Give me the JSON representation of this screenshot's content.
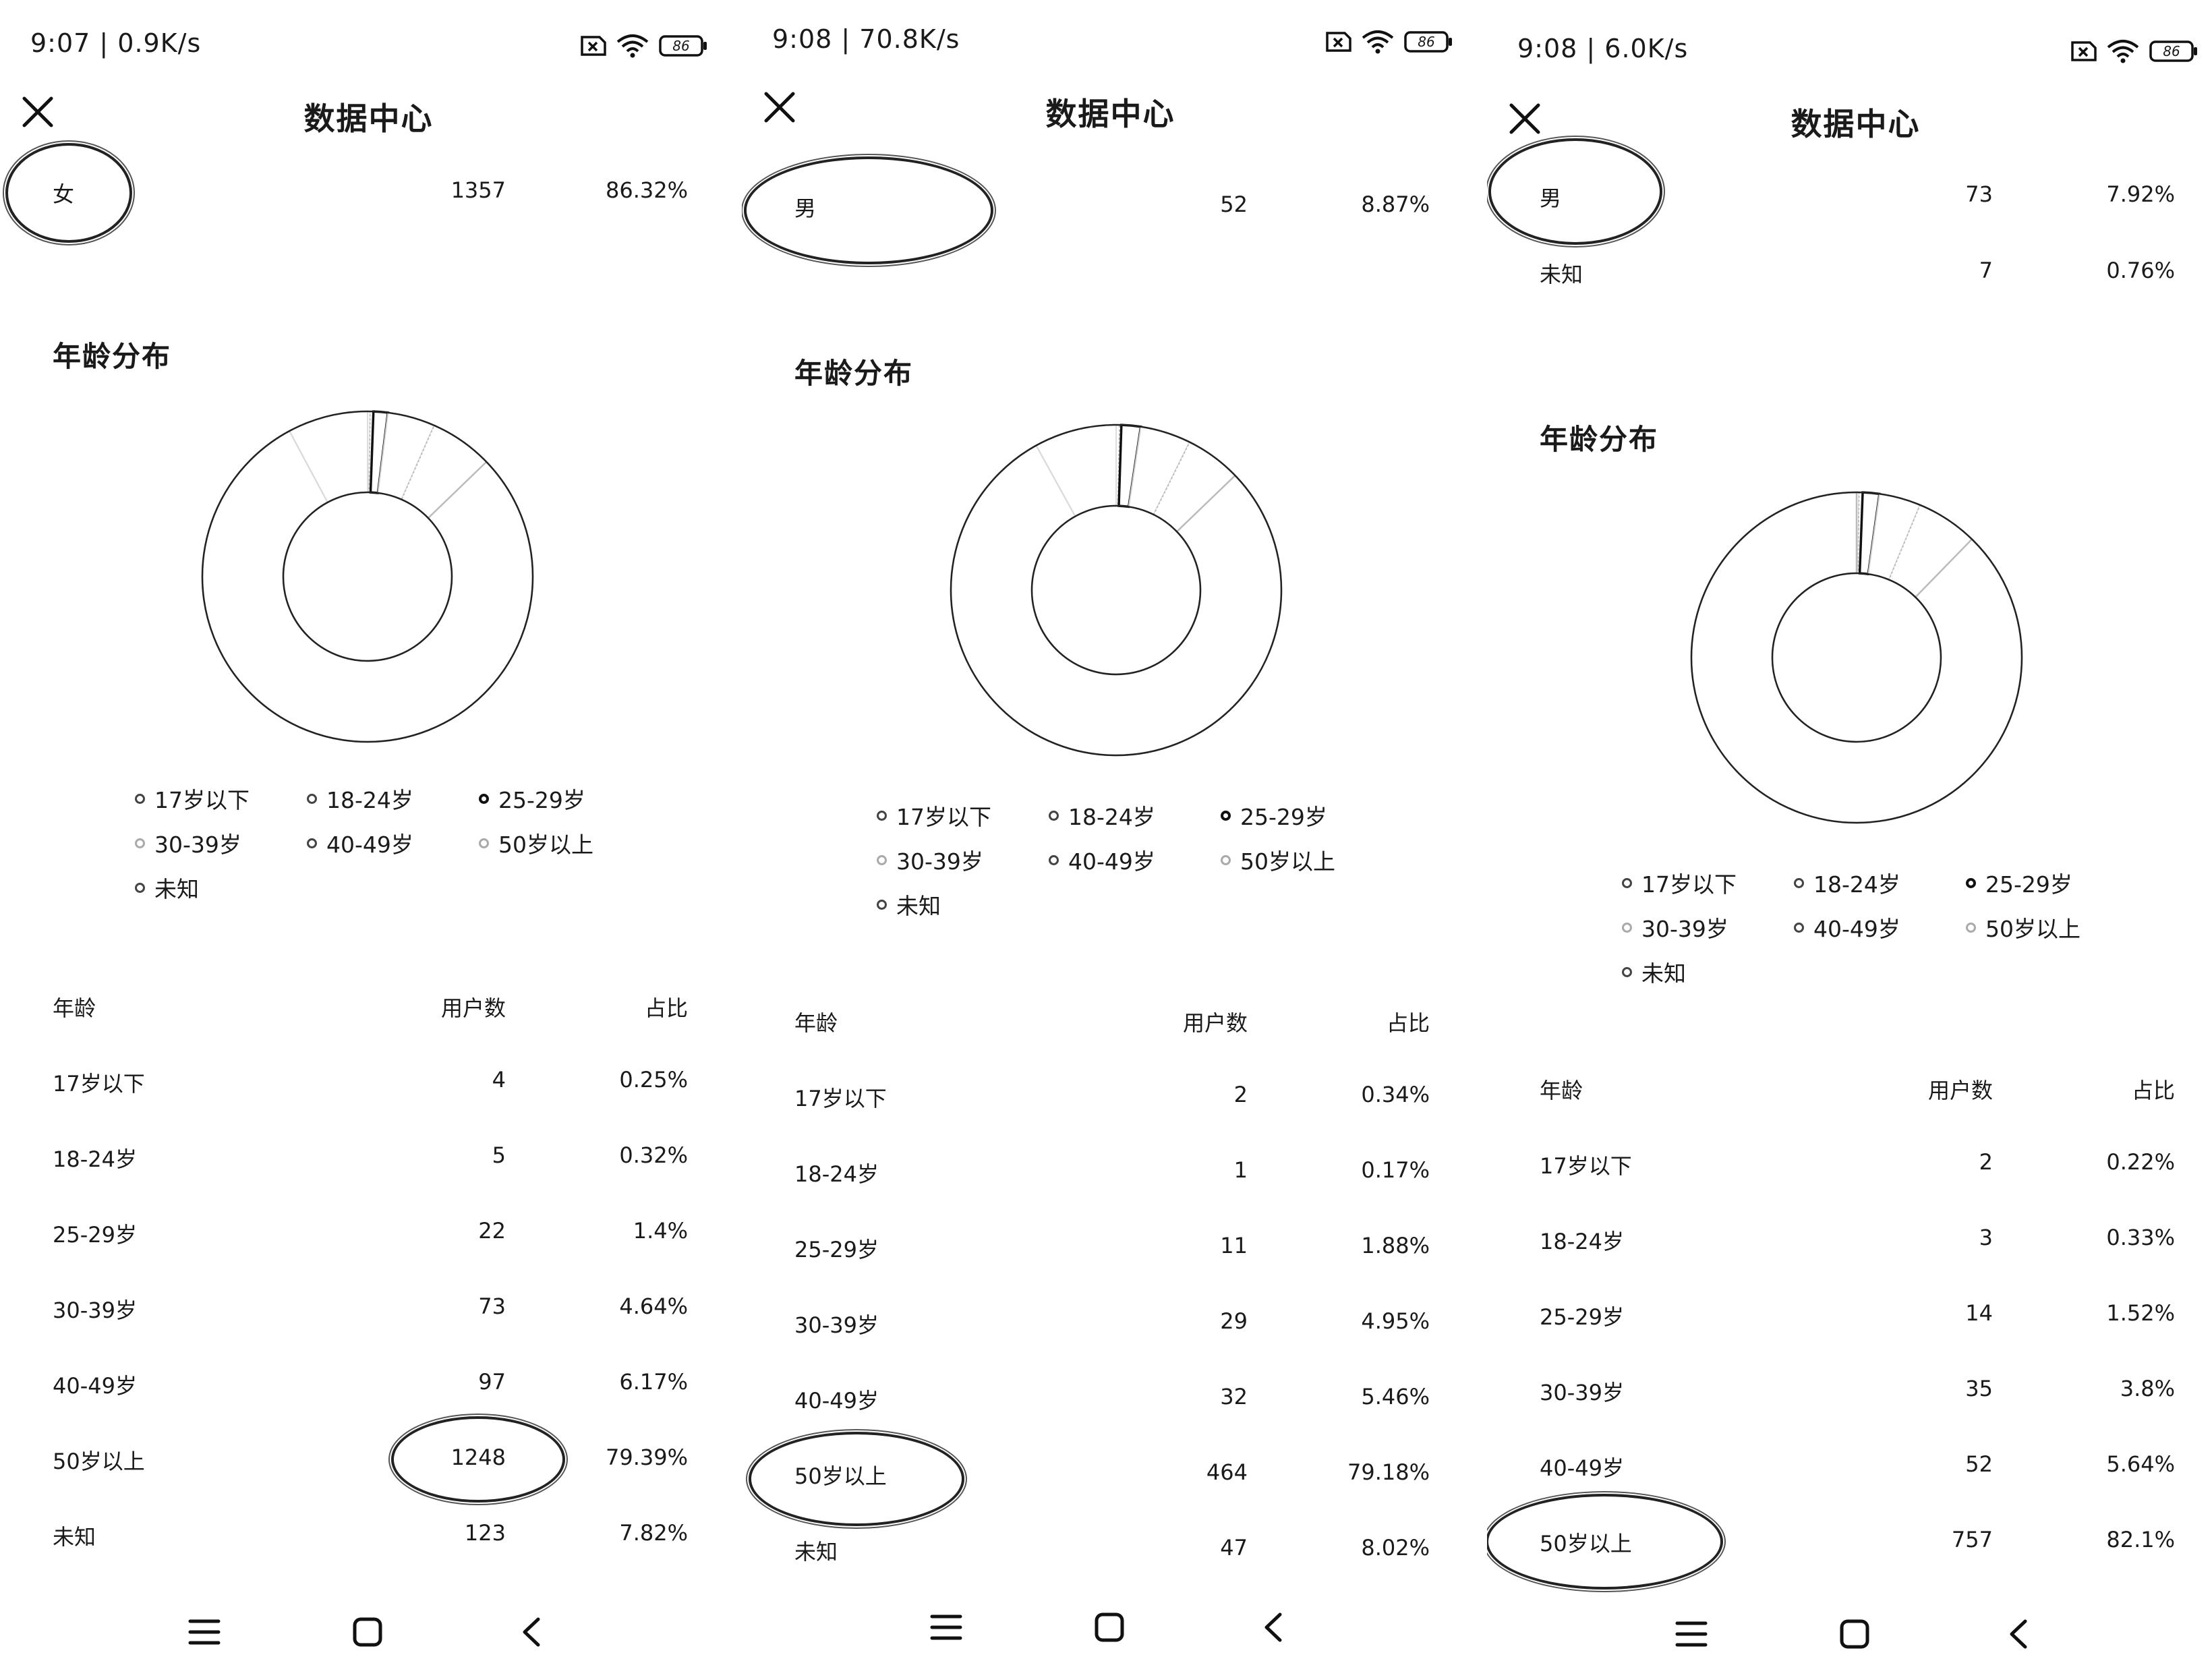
{
  "colors": {
    "ink": "#1a1a1a",
    "ring": "#222222",
    "background": "#ffffff"
  },
  "panels": [
    {
      "status": {
        "time": "9:07 | 0.9K/s",
        "battery": "86"
      },
      "title": "数据中心",
      "gender_rows": [
        {
          "label": "女",
          "count": "1357",
          "pct": "86.32%"
        }
      ],
      "age_section_title": "年龄分布",
      "legend": [
        "17岁以下",
        "18-24岁",
        "25-29岁",
        "30-39岁",
        "40-49岁",
        "50岁以上",
        "未知"
      ],
      "table": {
        "headers": {
          "age": "年龄",
          "users": "用户数",
          "pct": "占比"
        },
        "rows": [
          {
            "age": "17岁以下",
            "users": "4",
            "pct": "0.25%"
          },
          {
            "age": "18-24岁",
            "users": "5",
            "pct": "0.32%"
          },
          {
            "age": "25-29岁",
            "users": "22",
            "pct": "1.4%"
          },
          {
            "age": "30-39岁",
            "users": "73",
            "pct": "4.64%"
          },
          {
            "age": "40-49岁",
            "users": "97",
            "pct": "6.17%"
          },
          {
            "age": "50岁以上",
            "users": "1248",
            "pct": "79.39%"
          },
          {
            "age": "未知",
            "users": "123",
            "pct": "7.82%"
          }
        ]
      },
      "chart_data": {
        "type": "pie",
        "categories": [
          "17岁以下",
          "18-24岁",
          "25-29岁",
          "30-39岁",
          "40-49岁",
          "50岁以上",
          "未知"
        ],
        "values": [
          0.25,
          0.32,
          1.4,
          4.64,
          6.17,
          79.39,
          7.82
        ]
      }
    },
    {
      "status": {
        "time": "9:08 | 70.8K/s",
        "battery": "86"
      },
      "title": "数据中心",
      "gender_rows": [
        {
          "label": "男",
          "count": "52",
          "pct": "8.87%"
        }
      ],
      "age_section_title": "年龄分布",
      "legend": [
        "17岁以下",
        "18-24岁",
        "25-29岁",
        "30-39岁",
        "40-49岁",
        "50岁以上",
        "未知"
      ],
      "table": {
        "headers": {
          "age": "年龄",
          "users": "用户数",
          "pct": "占比"
        },
        "rows": [
          {
            "age": "17岁以下",
            "users": "2",
            "pct": "0.34%"
          },
          {
            "age": "18-24岁",
            "users": "1",
            "pct": "0.17%"
          },
          {
            "age": "25-29岁",
            "users": "11",
            "pct": "1.88%"
          },
          {
            "age": "30-39岁",
            "users": "29",
            "pct": "4.95%"
          },
          {
            "age": "40-49岁",
            "users": "32",
            "pct": "5.46%"
          },
          {
            "age": "50岁以上",
            "users": "464",
            "pct": "79.18%"
          },
          {
            "age": "未知",
            "users": "47",
            "pct": "8.02%"
          }
        ]
      },
      "chart_data": {
        "type": "pie",
        "categories": [
          "17岁以下",
          "18-24岁",
          "25-29岁",
          "30-39岁",
          "40-49岁",
          "50岁以上",
          "未知"
        ],
        "values": [
          0.34,
          0.17,
          1.88,
          4.95,
          5.46,
          79.18,
          8.02
        ]
      }
    },
    {
      "status": {
        "time": "9:08 | 6.0K/s",
        "battery": "86"
      },
      "title": "数据中心",
      "gender_rows": [
        {
          "label": "男",
          "count": "73",
          "pct": "7.92%"
        },
        {
          "label": "未知",
          "count": "7",
          "pct": "0.76%"
        }
      ],
      "age_section_title": "年龄分布",
      "legend": [
        "17岁以下",
        "18-24岁",
        "25-29岁",
        "30-39岁",
        "40-49岁",
        "50岁以上",
        "未知"
      ],
      "table": {
        "headers": {
          "age": "年龄",
          "users": "用户数",
          "pct": "占比"
        },
        "rows": [
          {
            "age": "17岁以下",
            "users": "2",
            "pct": "0.22%"
          },
          {
            "age": "18-24岁",
            "users": "3",
            "pct": "0.33%"
          },
          {
            "age": "25-29岁",
            "users": "14",
            "pct": "1.52%"
          },
          {
            "age": "30-39岁",
            "users": "35",
            "pct": "3.8%"
          },
          {
            "age": "40-49岁",
            "users": "52",
            "pct": "5.64%"
          },
          {
            "age": "50岁以上",
            "users": "757",
            "pct": "82.1%"
          }
        ]
      },
      "chart_data": {
        "type": "pie",
        "categories": [
          "17岁以下",
          "18-24岁",
          "25-29岁",
          "30-39岁",
          "40-49岁",
          "50岁以上",
          "未知"
        ],
        "values": [
          0.22,
          0.33,
          1.52,
          3.8,
          5.64,
          82.1,
          0.0
        ]
      }
    }
  ]
}
